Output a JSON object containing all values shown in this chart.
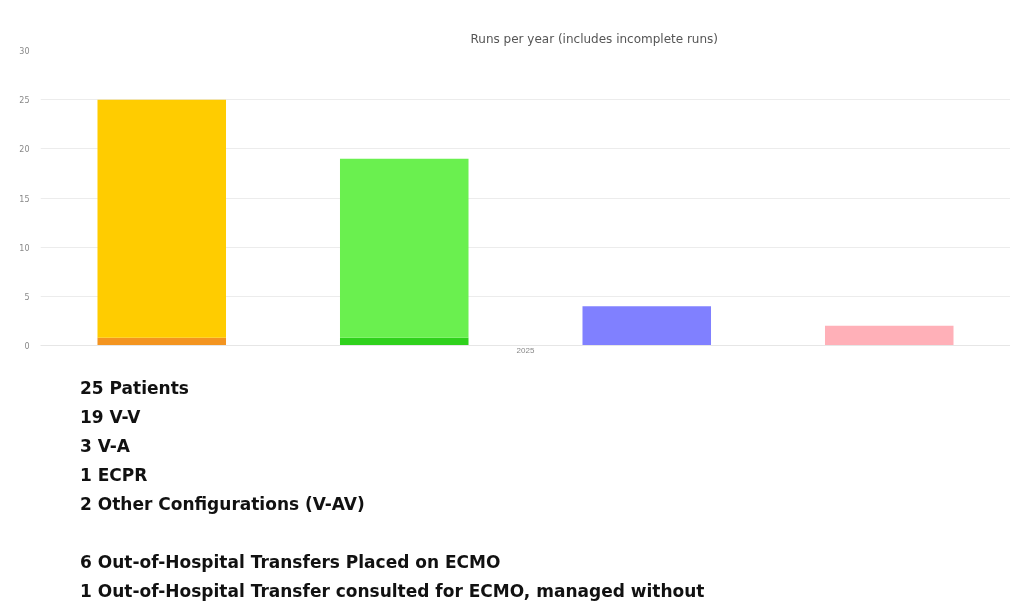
{
  "chart_data": {
    "type": "bar",
    "title": "Runs per year (includes incomplete runs)",
    "xlabel": "2025",
    "categories": [
      null,
      null,
      null,
      null
    ],
    "stacked": true,
    "series": [
      {
        "colors": [
          "#f39420",
          "#2fd11c",
          null,
          null
        ],
        "values": [
          0.8,
          0.8,
          null,
          null
        ]
      },
      {
        "colors": [
          "#ffcc00",
          "#6af04f",
          "#8080ff",
          "#ffb0b8"
        ],
        "values": [
          24.2,
          18.2,
          4,
          2
        ]
      }
    ],
    "ylim": [
      0,
      30
    ],
    "yticks": [
      0,
      5,
      10,
      15,
      20,
      25,
      30
    ],
    "grid": "y",
    "annotations": [
      "25 Patients",
      "19 V-V",
      "3 V-A",
      "1 ECPR",
      "2 Other Configurations (V-AV)",
      "6 Out-of-Hospital Transfers Placed on ECMO",
      "1 Out-of-Hospital Transfer consulted for ECMO, managed without"
    ]
  }
}
